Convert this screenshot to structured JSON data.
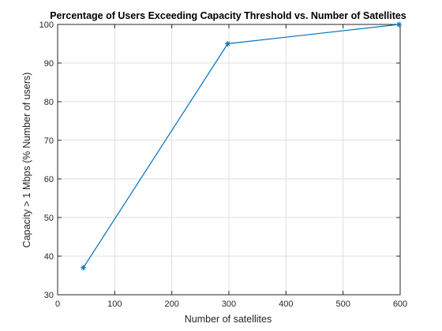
{
  "chart_data": {
    "type": "line",
    "title": "Percentage of Users Exceeding Capacity Threshold vs. Number of Satellites",
    "xlabel": "Number of satellites",
    "ylabel": "Capacity > 1 Mbps (% Number of users)",
    "xlim": [
      0,
      600
    ],
    "ylim": [
      30,
      100
    ],
    "xticks": [
      0,
      100,
      200,
      300,
      400,
      500,
      600
    ],
    "yticks": [
      30,
      40,
      50,
      60,
      70,
      80,
      90,
      100
    ],
    "grid": true,
    "series": [
      {
        "x": [
          45,
          298,
          598
        ],
        "y": [
          37,
          95,
          100
        ],
        "marker": "asterisk",
        "color": "#0072BD"
      }
    ]
  }
}
